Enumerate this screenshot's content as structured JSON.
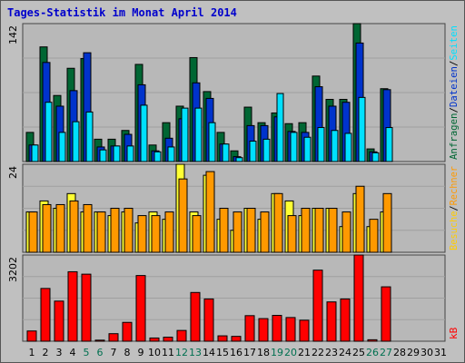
{
  "title": "Tages-Statistik im Monat April 2014",
  "chart_data": [
    {
      "type": "bar",
      "panel": "top",
      "ymax_label": "142",
      "ylim": [
        0,
        142
      ],
      "categories": [
        "1",
        "2",
        "3",
        "4",
        "5",
        "6",
        "7",
        "8",
        "9",
        "10",
        "11",
        "12",
        "13",
        "14",
        "15",
        "16",
        "17",
        "18",
        "19",
        "20",
        "21",
        "22",
        "23",
        "24",
        "25",
        "26",
        "27",
        "28",
        "29",
        "30",
        "31"
      ],
      "series": [
        {
          "name": "Anfragen",
          "color": "#006633",
          "values": [
            30,
            118,
            68,
            96,
            106,
            23,
            23,
            32,
            100,
            17,
            40,
            57,
            107,
            72,
            30,
            11,
            56,
            40,
            50,
            39,
            40,
            88,
            64,
            64,
            142,
            13,
            75,
            0,
            0,
            0,
            0
          ]
        },
        {
          "name": "Dateien",
          "color": "#0033cc",
          "values": [
            17,
            102,
            57,
            73,
            112,
            15,
            16,
            28,
            79,
            11,
            24,
            44,
            81,
            65,
            18,
            5,
            37,
            37,
            46,
            31,
            30,
            77,
            57,
            61,
            122,
            10,
            74,
            0,
            0,
            0,
            0
          ]
        },
        {
          "name": "Seiten",
          "color": "#00e0ff",
          "values": [
            17,
            61,
            30,
            41,
            51,
            12,
            16,
            16,
            58,
            10,
            15,
            55,
            55,
            40,
            18,
            4,
            21,
            23,
            70,
            30,
            25,
            35,
            32,
            29,
            66,
            9,
            35,
            0,
            0,
            0,
            0
          ]
        }
      ]
    },
    {
      "type": "bar",
      "panel": "middle",
      "ymax_label": "24",
      "ylim": [
        0,
        24
      ],
      "series": [
        {
          "name": "Besuche",
          "color": "#ffff33",
          "values": [
            11,
            14,
            12,
            16,
            11,
            11,
            10,
            11,
            8,
            11,
            9,
            24,
            11,
            21,
            9,
            6,
            12,
            9,
            16,
            14,
            10,
            12,
            12,
            7,
            16,
            7,
            11,
            0,
            0,
            0,
            0
          ]
        },
        {
          "name": "Rechner",
          "color": "#ff9900",
          "values": [
            11,
            13,
            13,
            14,
            13,
            11,
            12,
            12,
            10,
            10,
            11,
            20,
            10,
            22,
            12,
            11,
            12,
            11,
            16,
            10,
            12,
            12,
            12,
            11,
            18,
            9,
            16,
            0,
            0,
            0,
            0
          ]
        }
      ]
    },
    {
      "type": "bar",
      "panel": "bottom",
      "ymax_label": "3202",
      "ylim": [
        0,
        3202
      ],
      "series": [
        {
          "name": "kB",
          "color": "#ff0000",
          "values": [
            380,
            1960,
            1490,
            2580,
            2490,
            40,
            280,
            700,
            2440,
            120,
            150,
            400,
            1810,
            1570,
            200,
            180,
            950,
            840,
            960,
            880,
            780,
            2640,
            1460,
            1570,
            3202,
            55,
            2020,
            0,
            0,
            0,
            0
          ]
        }
      ]
    }
  ],
  "x_label_colors": {
    "weekday": "#000000",
    "weekend": "#007050"
  },
  "weekend_days": [
    "5",
    "6",
    "12",
    "13",
    "19",
    "20",
    "26",
    "27"
  ],
  "right_labels": {
    "top": [
      {
        "text": "Anfragen",
        "color": "#006633"
      },
      {
        "text": "/",
        "color": "#000000"
      },
      {
        "text": "Dateien",
        "color": "#0033cc"
      },
      {
        "text": "/",
        "color": "#000000"
      },
      {
        "text": "Seiten",
        "color": "#00e0ff"
      }
    ],
    "middle": [
      {
        "text": "Besuche",
        "color": "#ffcc00"
      },
      {
        "text": "/",
        "color": "#000000"
      },
      {
        "text": "Rechner",
        "color": "#ff9900"
      }
    ],
    "bottom": [
      {
        "text": "kB",
        "color": "#ff0000"
      }
    ]
  }
}
